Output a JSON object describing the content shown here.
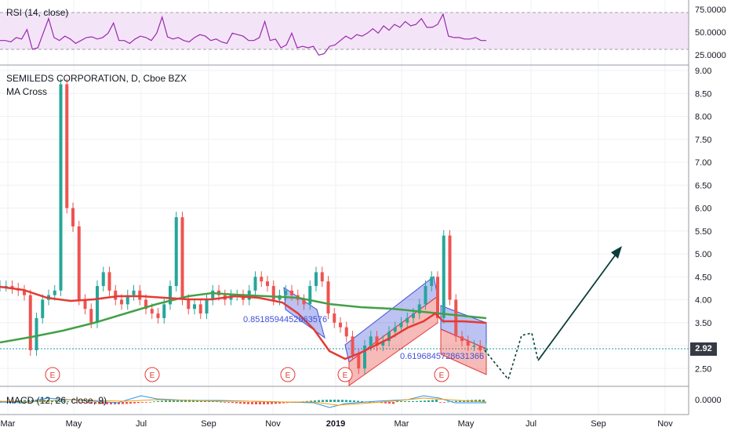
{
  "header": {
    "rsi_title": "RSI (14, close)",
    "chart_title": "SEMILEDS CORPORATION, D, Cboe BZX",
    "indicator": "MA Cross",
    "macd_title": "MACD (12, 26, close, 9)"
  },
  "colors": {
    "rsi_line": "#9c27b0",
    "rsi_band": "#e1bee7",
    "up_candle": "#26a69a",
    "down_candle": "#ef5350",
    "ma_fast": "#e53935",
    "ma_slow": "#43a047",
    "channel_blue": "#3f51d8",
    "channel_red": "#e53935",
    "last_price_bg": "#363a45",
    "arrow": "#0b3d3a"
  },
  "price_axis": {
    "ticks": [
      "9.00",
      "8.50",
      "8.00",
      "7.50",
      "7.00",
      "6.50",
      "6.00",
      "5.50",
      "5.00",
      "4.50",
      "4.00",
      "3.50",
      "3.00",
      "2.50"
    ],
    "last_price": "2.92"
  },
  "rsi_axis": {
    "ticks": [
      "75.0000",
      "50.0000",
      "25.0000"
    ]
  },
  "macd_axis": {
    "ticks": [
      "0.0000"
    ]
  },
  "time_axis": {
    "ticks": [
      "Mar",
      "May",
      "Jul",
      "Sep",
      "Nov",
      "2019",
      "Mar",
      "May",
      "Jul",
      "Sep",
      "Nov"
    ]
  },
  "annotations": {
    "fib_label_1": "0.8518594452863576",
    "fib_label_2": "0.6196845728631366",
    "earnings_marker": "E"
  },
  "chart_data": {
    "type": "line",
    "title": "SEMILEDS CORPORATION, D, Cboe BZX",
    "ylim": [
      2.2,
      9.0
    ],
    "series": [
      {
        "name": "close",
        "x": [
          "2018-03",
          "2018-04",
          "2018-05",
          "2018-06",
          "2018-07",
          "2018-08",
          "2018-09",
          "2018-10",
          "2018-11",
          "2018-12",
          "2019-01",
          "2019-02",
          "2019-03",
          "2019-04",
          "2019-05"
        ],
        "values": [
          4.3,
          4.1,
          4.2,
          3.9,
          4.2,
          4.0,
          4.1,
          4.3,
          3.8,
          3.0,
          2.8,
          3.5,
          4.3,
          3.2,
          2.92
        ]
      }
    ],
    "rsi": {
      "ylim": [
        15,
        85
      ],
      "levels": [
        70,
        30
      ]
    },
    "earnings_dates": [
      "2018-04",
      "2018-07",
      "2018-11",
      "2019-01",
      "2019-04"
    ]
  }
}
